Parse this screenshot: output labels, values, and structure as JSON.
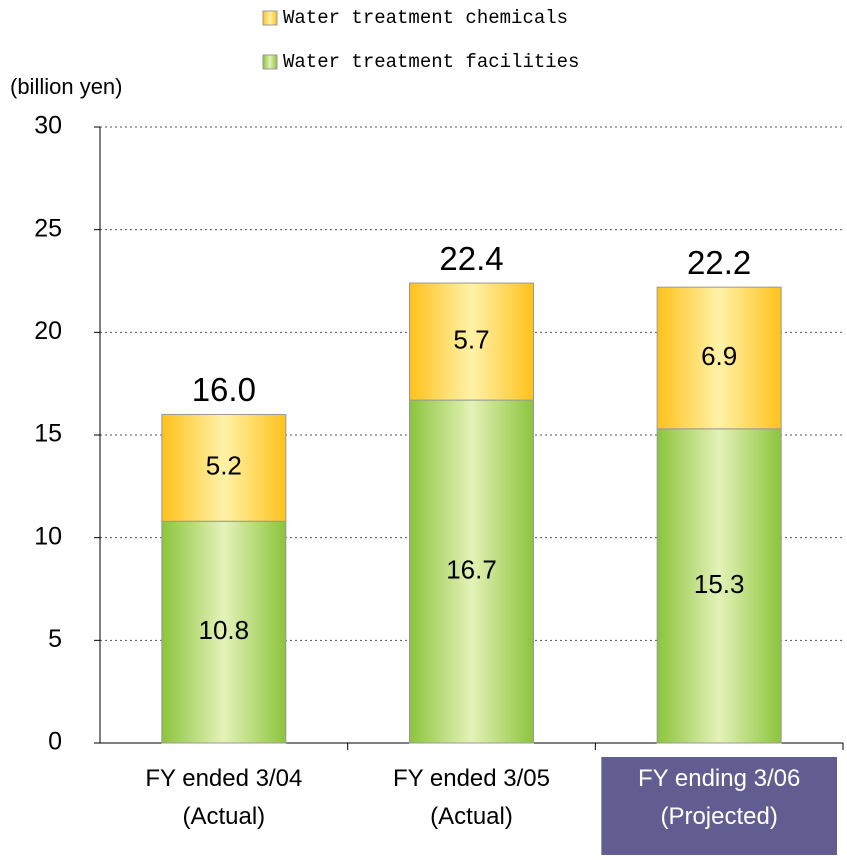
{
  "chart_data": {
    "type": "stacked_bar",
    "y_label": "(billion yen)",
    "categories": [
      "FY ended 3/04\n(Actual)",
      "FY ended 3/05\n(Actual)",
      "FY ending 3/06\n(Projected)"
    ],
    "series": [
      {
        "name": "Water treatment facilities",
        "color": "#8cc43c",
        "values": [
          10.8,
          16.7,
          15.3
        ]
      },
      {
        "name": "Water treatment chemicals",
        "color": "#ffc21a",
        "values": [
          5.2,
          5.7,
          6.9
        ]
      }
    ],
    "totals": [
      16,
      22.4,
      22.2
    ],
    "total_labels": [
      "16.0",
      "22.4",
      "22.2"
    ],
    "ylim": [
      0,
      30
    ],
    "yticks": [
      0,
      5,
      10,
      15,
      20,
      25,
      30
    ],
    "grid": true,
    "highlight_index": 2,
    "highlight_color": "#615d91"
  }
}
